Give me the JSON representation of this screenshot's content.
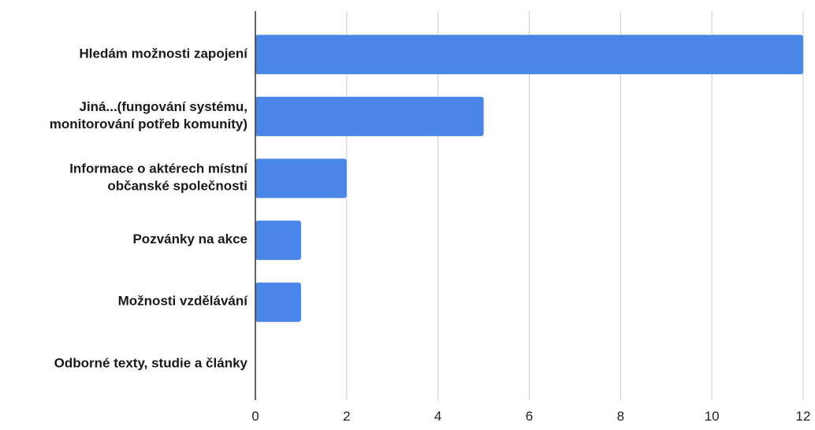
{
  "chart_data": {
    "type": "bar",
    "orientation": "horizontal",
    "title": "",
    "xlabel": "",
    "ylabel": "",
    "categories": [
      "Hledám možnosti zapojení",
      "Jiná...(fungování systému, monitorování potřeb komunity)",
      "Informace o aktérech místní občanské společnosti",
      "Pozvánky na akce",
      "Možnosti vzdělávání",
      "Odborné texty, studie a články"
    ],
    "category_lines": [
      [
        "Hledám možnosti zapojení"
      ],
      [
        "Jiná...(fungování systému,",
        "monitorování potřeb komunity)"
      ],
      [
        "Informace o aktérech místní",
        "občanské společnosti"
      ],
      [
        "Pozvánky na akce"
      ],
      [
        "Možnosti vzdělávání"
      ],
      [
        "Odborné texty, studie a články"
      ]
    ],
    "values": [
      12,
      5,
      2,
      1,
      1,
      0
    ],
    "xlim": [
      0,
      12
    ],
    "x_ticks": [
      "0",
      "2",
      "4",
      "6",
      "8",
      "10",
      "12"
    ],
    "grid": true,
    "legend": "none",
    "colors": {
      "bar": "#4a86e8",
      "grid": "#cccccc",
      "axis": "#333333"
    }
  }
}
